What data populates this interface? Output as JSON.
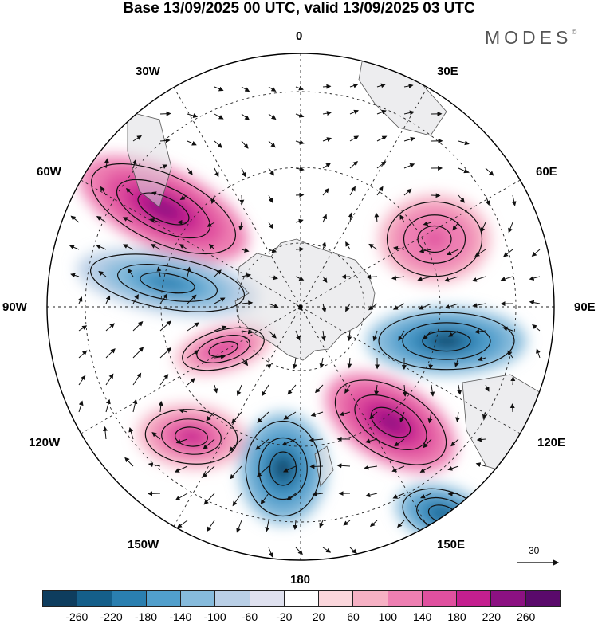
{
  "title": "Base 13/09/2025 00 UTC, valid 13/09/2025 03 UTC",
  "brand": "MODES",
  "brand_mark": "©",
  "map": {
    "projection": "south polar stereographic",
    "longitude_labels": {
      "top": "0",
      "top_left": "30W",
      "top_right": "30E",
      "upper_left": "60W",
      "upper_right": "60E",
      "left": "90W",
      "right": "90E",
      "lower_left": "120W",
      "lower_right": "120E",
      "bottom_left": "150W",
      "bottom_right": "150E",
      "bottom": "180"
    },
    "reference_vector": "30",
    "anomaly_centers": [
      {
        "name": "60W positive",
        "sign": "positive",
        "peak": 260
      },
      {
        "name": "75W negative",
        "sign": "negative",
        "peak": -180
      },
      {
        "name": "100W positive",
        "sign": "positive",
        "peak": 180
      },
      {
        "name": "125W positive",
        "sign": "positive",
        "peak": 200
      },
      {
        "name": "170W negative",
        "sign": "negative",
        "peak": -260
      },
      {
        "name": "140E positive",
        "sign": "positive",
        "peak": 240
      },
      {
        "name": "100E negative",
        "sign": "negative",
        "peak": -260
      },
      {
        "name": "70E positive",
        "sign": "positive",
        "peak": 160
      },
      {
        "name": "150E negative",
        "sign": "negative",
        "peak": -220
      }
    ]
  },
  "colorbar": {
    "ticks": [
      "-260",
      "-220",
      "-180",
      "-140",
      "-100",
      "-60",
      "-20",
      "20",
      "60",
      "100",
      "140",
      "180",
      "220",
      "260"
    ],
    "colors": [
      "#0e3d5e",
      "#155f8a",
      "#2a7fb0",
      "#519fcc",
      "#86bbdc",
      "#b9cfe6",
      "#dfe1ef",
      "#ffffff",
      "#fbd7dc",
      "#f6b1c4",
      "#ee7fb2",
      "#e0509f",
      "#c41f8f",
      "#8c1182",
      "#5a0a6b"
    ]
  }
}
